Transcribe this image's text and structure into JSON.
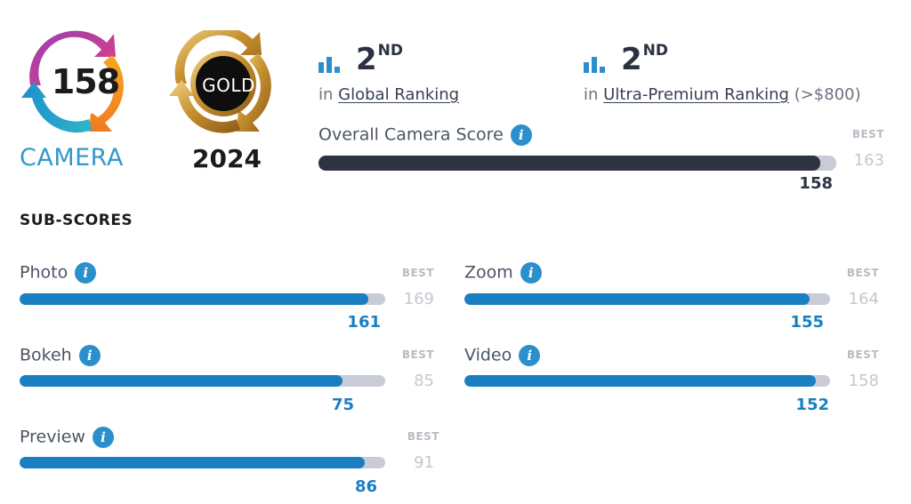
{
  "badge": {
    "score": "158",
    "category": "CAMERA"
  },
  "award": {
    "label": "GOLD",
    "year": "2024"
  },
  "rankings": [
    {
      "position": "2",
      "suffix": "ND",
      "prefix": "in",
      "name": "Global Ranking",
      "extra": ""
    },
    {
      "position": "2",
      "suffix": "ND",
      "prefix": "in",
      "name": "Ultra-Premium Ranking",
      "extra": "(>$800)"
    }
  ],
  "overall": {
    "title": "Overall Camera Score",
    "best_label": "BEST",
    "best": "163",
    "score": "158",
    "fraction": 0.9693,
    "color": "#2d3340"
  },
  "subscores_heading": "SUB-SCORES",
  "subscores": [
    {
      "name": "Photo",
      "best_label": "BEST",
      "best": "169",
      "score": "161",
      "fraction": 0.9527
    },
    {
      "name": "Zoom",
      "best_label": "BEST",
      "best": "164",
      "score": "155",
      "fraction": 0.9451
    },
    {
      "name": "Bokeh",
      "best_label": "BEST",
      "best": "85",
      "score": "75",
      "fraction": 0.8824
    },
    {
      "name": "Video",
      "best_label": "BEST",
      "best": "158",
      "score": "152",
      "fraction": 0.962
    },
    {
      "name": "Preview",
      "best_label": "BEST",
      "best": "91",
      "score": "86",
      "fraction": 0.9451
    }
  ],
  "colors": {
    "accent": "#2b8fcb",
    "sub_fill": "#1a7fc1",
    "track": "#c9ccd6"
  },
  "icons": {
    "info": "info-icon",
    "ranking": "bar-chart-icon"
  }
}
